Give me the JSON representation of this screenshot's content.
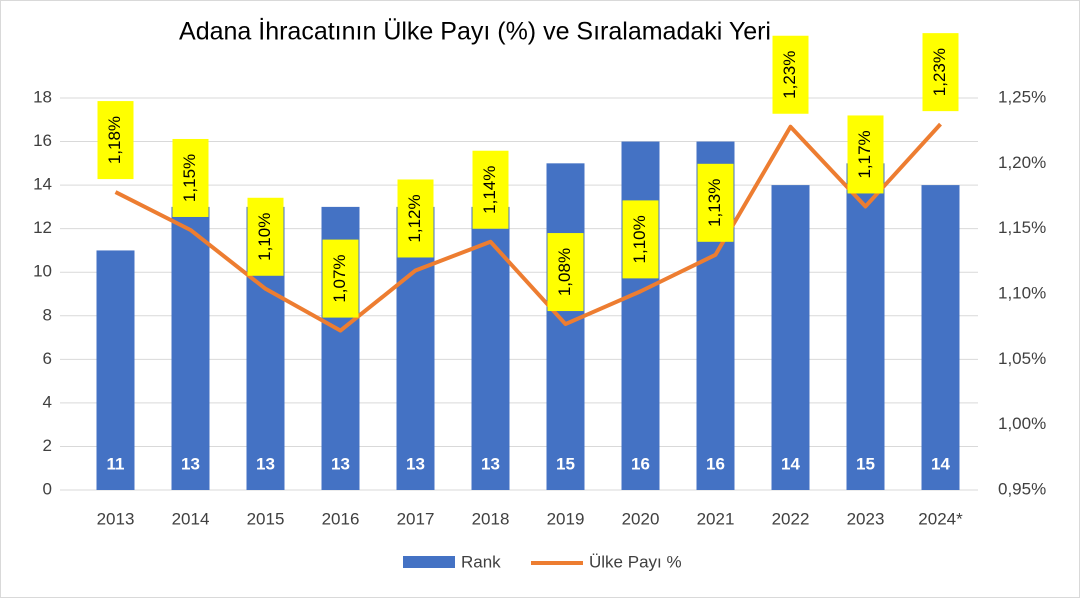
{
  "chart_data": {
    "type": "bar_line",
    "title": "Adana İhracatının Ülke Payı (%) ve Sıralamadaki Yeri",
    "categories": [
      "2013",
      "2014",
      "2015",
      "2016",
      "2017",
      "2018",
      "2019",
      "2020",
      "2021",
      "2022",
      "2023",
      "2024*"
    ],
    "series": [
      {
        "name": "Rank",
        "color": "#4472c4",
        "type": "bar",
        "values": [
          11,
          13,
          13,
          13,
          13,
          13,
          15,
          16,
          16,
          14,
          15,
          14
        ]
      },
      {
        "name": "Ülke Payı %",
        "color": "#ed7d31",
        "type": "line",
        "axis": "y2",
        "values": [
          1.178,
          1.149,
          1.104,
          1.072,
          1.118,
          1.14,
          1.077,
          1.102,
          1.13,
          1.228,
          1.167,
          1.23
        ],
        "value_labels": [
          "1,18%",
          "1,15%",
          "1,10%",
          "1,07%",
          "1,12%",
          "1,14%",
          "1,08%",
          "1,10%",
          "1,13%",
          "1,23%",
          "1,17%",
          "1,23%"
        ],
        "label_background": "#ffff00"
      }
    ],
    "ylim": [
      0,
      18
    ],
    "yticks": [
      0,
      2,
      4,
      6,
      8,
      10,
      12,
      14,
      16,
      18
    ],
    "y2lim": [
      0.95,
      1.25
    ],
    "y2ticks": [
      {
        "value": 0.95,
        "label": "0,95%"
      },
      {
        "value": 1.0,
        "label": "1,00%"
      },
      {
        "value": 1.05,
        "label": "1,05%"
      },
      {
        "value": 1.1,
        "label": "1,10%"
      },
      {
        "value": 1.15,
        "label": "1,15%"
      },
      {
        "value": 1.2,
        "label": "1,20%"
      },
      {
        "value": 1.25,
        "label": "1,25%"
      }
    ],
    "grid": true,
    "legend": "bottom"
  }
}
